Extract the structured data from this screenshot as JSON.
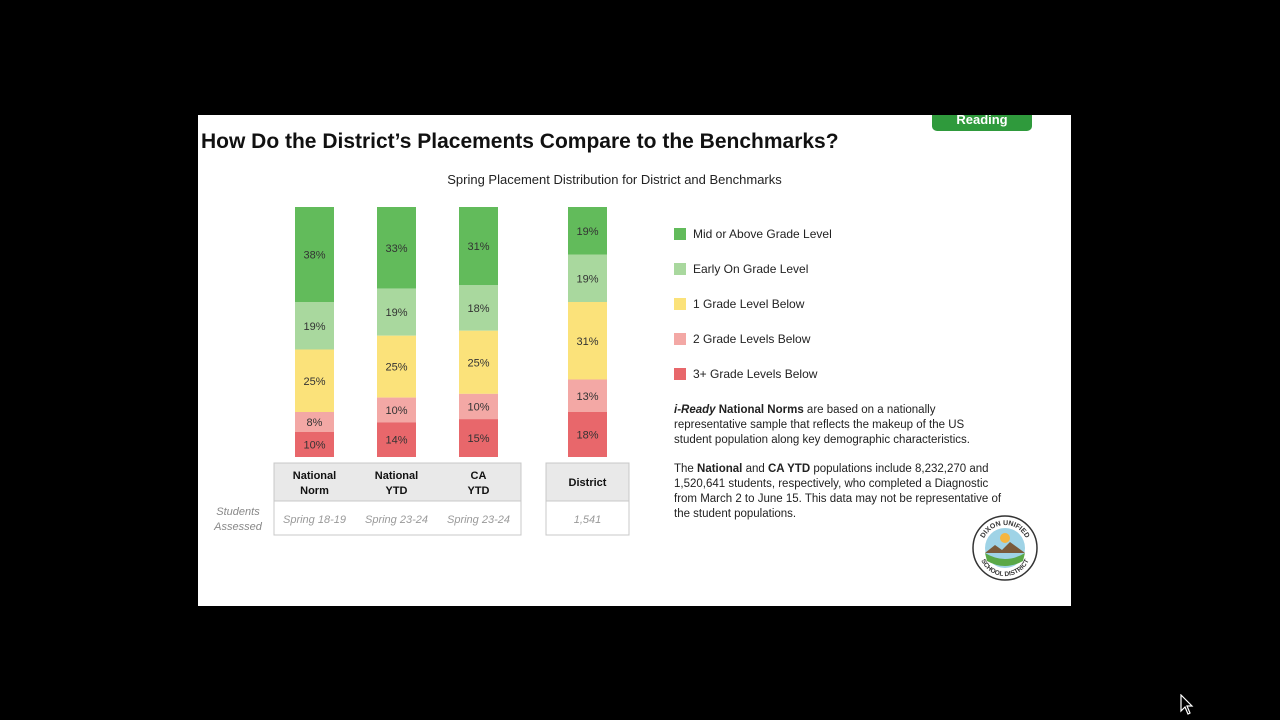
{
  "slide": {
    "tag": "Reading",
    "title": "How Do the District’s Placements Compare to the Benchmarks?",
    "subtitle": "Spring Placement Distribution for District and Benchmarks"
  },
  "colors": {
    "mid_above": "#62bb5b",
    "early_on": "#a9d89e",
    "one_below": "#fbe27a",
    "two_below": "#f3a8a5",
    "three_below": "#e8676b",
    "tag_green": "#2f9a3c"
  },
  "chart_data": {
    "type": "bar",
    "stacked": true,
    "categories": [
      "National Norm",
      "National YTD",
      "CA YTD",
      "District"
    ],
    "category_labels": [
      [
        "National",
        "Norm"
      ],
      [
        "National",
        "YTD"
      ],
      [
        "CA",
        "YTD"
      ],
      [
        "District"
      ]
    ],
    "series": [
      {
        "name": "Mid or Above Grade Level",
        "values": [
          38,
          33,
          31,
          19
        ],
        "labels": [
          "38%",
          "33%",
          "31%",
          "19%"
        ],
        "color": "#62bb5b"
      },
      {
        "name": "Early On Grade Level",
        "values": [
          19,
          19,
          18,
          19
        ],
        "labels": [
          "19%",
          "19%",
          "18%",
          "19%"
        ],
        "color": "#a9d89e"
      },
      {
        "name": "1 Grade Level Below",
        "values": [
          25,
          25,
          25,
          31
        ],
        "labels": [
          "25%",
          "25%",
          "25%",
          "31%"
        ],
        "color": "#fbe27a"
      },
      {
        "name": "2 Grade Levels Below",
        "values": [
          8,
          10,
          10,
          13
        ],
        "labels": [
          "8%",
          "10%",
          "10%",
          "13%"
        ],
        "color": "#f3a8a5"
      },
      {
        "name": "3+ Grade Levels Below",
        "values": [
          10,
          14,
          15,
          18
        ],
        "labels": [
          "10%",
          "14%",
          "15%",
          "18%"
        ],
        "color": "#e8676b"
      }
    ],
    "students_assessed_label": [
      "Students",
      "Assessed"
    ],
    "students_assessed": [
      "Spring 18-19",
      "Spring 23-24",
      "Spring 23-24",
      "1,541"
    ],
    "legend_position": "right",
    "ylim": [
      0,
      100
    ],
    "grid": false
  },
  "notes": [
    {
      "segments": [
        {
          "text": "i-Ready",
          "style": "bi"
        },
        {
          "text": " National Norms",
          "style": "b"
        },
        {
          "text": " are based on a nationally representative sample that reflects the makeup of the US student population along key demographic characteristics.",
          "style": ""
        }
      ]
    },
    {
      "segments": [
        {
          "text": "The ",
          "style": ""
        },
        {
          "text": "National",
          "style": "b"
        },
        {
          "text": " and ",
          "style": ""
        },
        {
          "text": "CA YTD",
          "style": "b"
        },
        {
          "text": " populations include 8,232,270 and 1,520,641 students, respectively, who completed a Diagnostic from March 2 to June 15. This data may not be representative of the student populations.",
          "style": ""
        }
      ]
    }
  ],
  "logo": {
    "top_text": "DIXON UNIFIED",
    "bottom_text": "SCHOOL DISTRICT"
  }
}
